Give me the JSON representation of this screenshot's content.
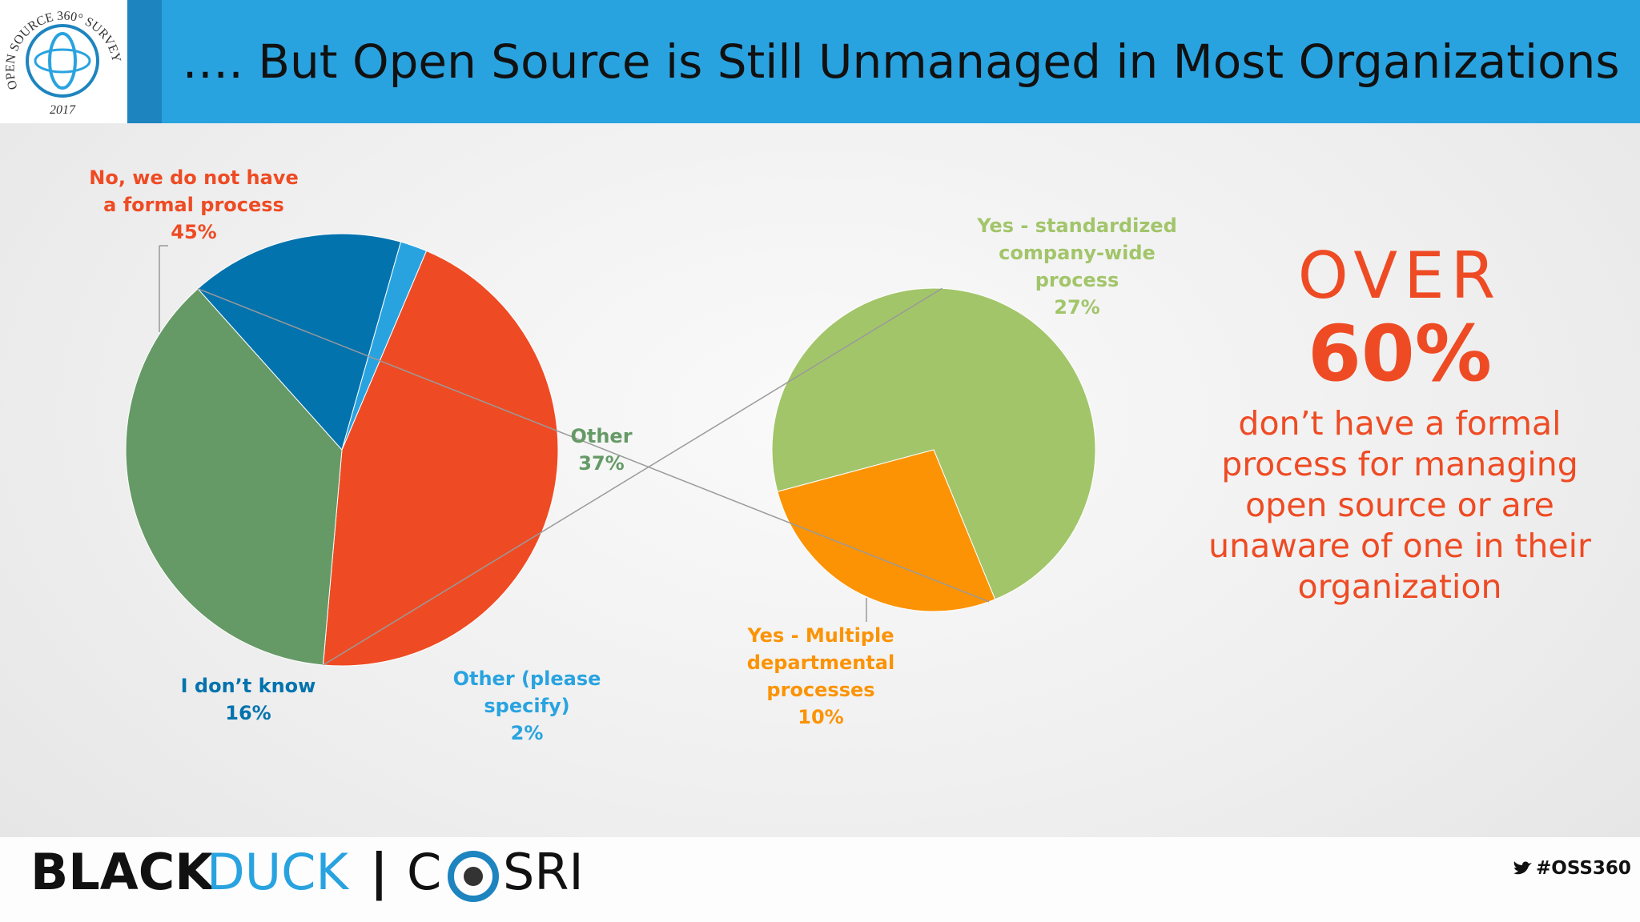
{
  "header": {
    "title": "…. But Open Source is Still Unmanaged in Most Organizations"
  },
  "logo": {
    "arc_text": "OPEN SOURCE 360° SURVEY",
    "year": "2017"
  },
  "chart_data": [
    {
      "type": "pie",
      "categories": [
        "No, we do not have a formal process",
        "Other",
        "I don’t know",
        "Other (please specify)"
      ],
      "values": [
        45,
        37,
        16,
        2
      ],
      "value_labels": [
        "45%",
        "37%",
        "16%",
        "2%"
      ],
      "colors": [
        "#ee4b24",
        "#659a66",
        "#0373ae",
        "#29a3e0"
      ]
    },
    {
      "type": "pie",
      "categories": [
        "Yes - standardized company-wide process",
        "Yes - Multiple departmental processes"
      ],
      "values": [
        27,
        10
      ],
      "value_labels": [
        "27%",
        "10%"
      ],
      "colors": [
        "#a2c56a",
        "#fb9304"
      ]
    }
  ],
  "callout": {
    "lead": "OVER",
    "figure": "60%",
    "text": "don’t have a formal process for managing open source or are unaware of one in their organization"
  },
  "footer": {
    "brand_left": "BLACK",
    "brand_right": "DUCK",
    "separator": "|",
    "partner_start": "C",
    "partner_end": "SRI",
    "hashtag": "#OSS360"
  }
}
